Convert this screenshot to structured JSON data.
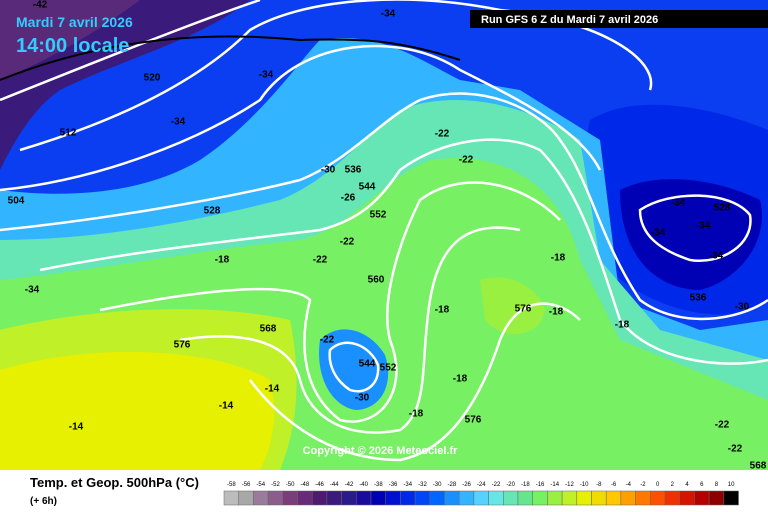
{
  "header": {
    "date": "Mardi 7 avril 2026",
    "time": "14:00 locale",
    "run": "Run GFS 6 Z du Mardi 7 avril 2026"
  },
  "footer": {
    "title": "Temp. et Geop. 500hPa (°C)",
    "step": "(+ 6h)",
    "copyright": "Copyright © 2026 Meteociel.fr"
  },
  "map": {
    "contour_labels": [
      "-42",
      "-34",
      "-34",
      "520",
      "-34",
      "512",
      "-30",
      "536",
      "544",
      "-26",
      "528",
      "552",
      "-22",
      "-22",
      "-22",
      "-22",
      "504",
      "-34",
      "-18",
      "560",
      "568",
      "576",
      "-14",
      "-14",
      "-14",
      "-22",
      "544",
      "552",
      "-30",
      "-18",
      "576",
      "-18",
      "-34",
      "528",
      "-34",
      "-34",
      "-34",
      "536",
      "-30",
      "-22",
      "-22",
      "568",
      "-18",
      "-18",
      "-18",
      "-18",
      "576"
    ]
  },
  "legend": {
    "values": [
      -58,
      -56,
      -54,
      -52,
      -50,
      -48,
      -46,
      -44,
      -42,
      -40,
      -38,
      -36,
      -34,
      -32,
      -30,
      -28,
      -26,
      -24,
      -22,
      -20,
      -18,
      -16,
      -14,
      -12,
      -10,
      -8,
      -6,
      -4,
      -2,
      0,
      2,
      4,
      6,
      8,
      10
    ],
    "colors": [
      "#bcbcbc",
      "#a8a8a8",
      "#9a7c9a",
      "#8c5c8c",
      "#7a3c7a",
      "#6a2a7a",
      "#4e1a6e",
      "#3a1a7a",
      "#2a1a8a",
      "#1a0a9e",
      "#0000b4",
      "#0010d0",
      "#0028e8",
      "#0046f6",
      "#0066ff",
      "#1a90ff",
      "#33b4ff",
      "#55d2ff",
      "#66e6e6",
      "#66e6b4",
      "#66e68c",
      "#78f064",
      "#9af040",
      "#c0f028",
      "#e6f000",
      "#f0dc00",
      "#ffc800",
      "#ffa000",
      "#ff7800",
      "#ff5000",
      "#f03000",
      "#d21400",
      "#b40000",
      "#8c0000",
      "#000000"
    ]
  }
}
